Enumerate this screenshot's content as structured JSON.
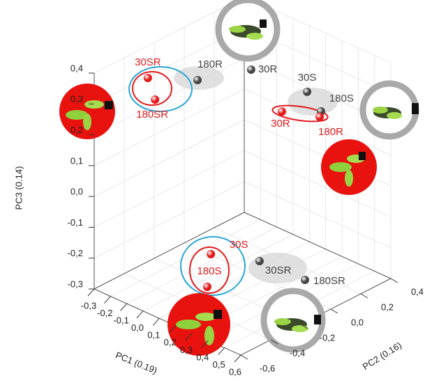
{
  "chart_data": {
    "type": "scatter3d",
    "xlabel": "PC1 (0.19)",
    "ylabel": "PC2 (0.16)",
    "zlabel": "PC3 (0.14)",
    "xlim": [
      -0.3,
      0.6
    ],
    "ylim": [
      -0.6,
      0.4
    ],
    "zlim": [
      -0.3,
      0.4
    ],
    "xticks": [
      {
        "value": -0.3,
        "label": "-0,3"
      },
      {
        "value": -0.2,
        "label": "-0,2"
      },
      {
        "value": -0.1,
        "label": "-0,1"
      },
      {
        "value": 0.0,
        "label": "0,0"
      },
      {
        "value": 0.1,
        "label": "0,1"
      },
      {
        "value": 0.2,
        "label": "0,2"
      },
      {
        "value": 0.3,
        "label": "0,3"
      },
      {
        "value": 0.4,
        "label": "0,4"
      },
      {
        "value": 0.5,
        "label": "0,5"
      },
      {
        "value": 0.6,
        "label": "0,6"
      }
    ],
    "yticks": [
      {
        "value": -0.6,
        "label": "-0,6"
      },
      {
        "value": -0.4,
        "label": "-0,4"
      },
      {
        "value": -0.2,
        "label": "-0,2"
      },
      {
        "value": 0.0,
        "label": "0,0"
      },
      {
        "value": 0.2,
        "label": "0,2"
      },
      {
        "value": 0.4,
        "label": "0,4"
      }
    ],
    "zticks": [
      {
        "value": 0.4,
        "label": "0,4"
      },
      {
        "value": 0.3,
        "label": "0,3"
      },
      {
        "value": 0.2,
        "label": "0,2"
      },
      {
        "value": 0.1,
        "label": "0,1"
      },
      {
        "value": 0.0,
        "label": "0,0"
      },
      {
        "value": -0.1,
        "label": "-0,1"
      },
      {
        "value": -0.2,
        "label": "-0,2"
      },
      {
        "value": -0.3,
        "label": "-0,3"
      }
    ],
    "grid": true,
    "points": [
      {
        "label": "30SR",
        "x": -0.094,
        "y": -0.466,
        "z": 0.4,
        "color": "#e3191c"
      },
      {
        "label": "180SR",
        "x": 0.067,
        "y": -0.593,
        "z": 0.4,
        "color": "#e3191c"
      },
      {
        "label": "180R",
        "x": 0.081,
        "y": -0.325,
        "z": 0.4,
        "color": "#444444"
      },
      {
        "label": "30R",
        "x": 0.189,
        "y": -0.085,
        "z": 0.4,
        "color": "#444444"
      },
      {
        "label": "30S",
        "x": 0.086,
        "y": 0.4,
        "z": 0.183,
        "color": "#444444"
      },
      {
        "label": "180S",
        "x": 0.171,
        "y": 0.4,
        "z": 0.14,
        "color": "#444444"
      },
      {
        "label": "30R",
        "x": -0.069,
        "y": 0.4,
        "z": 0.082,
        "color": "#e3191c"
      },
      {
        "label": "180R",
        "x": 0.163,
        "y": 0.4,
        "z": 0.12,
        "color": "#e3191c"
      },
      {
        "label": "30S",
        "x": -0.142,
        "y": 0.006,
        "z": -0.3,
        "color": "#e3191c"
      },
      {
        "label": "180S",
        "x": 0.055,
        "y": -0.232,
        "z": -0.3,
        "color": "#e3191c"
      },
      {
        "label": "30SR",
        "x": 0.061,
        "y": 0.11,
        "z": -0.3,
        "color": "#444444"
      },
      {
        "label": "180SR",
        "x": 0.329,
        "y": 0.122,
        "z": -0.3,
        "color": "#444444"
      }
    ]
  }
}
